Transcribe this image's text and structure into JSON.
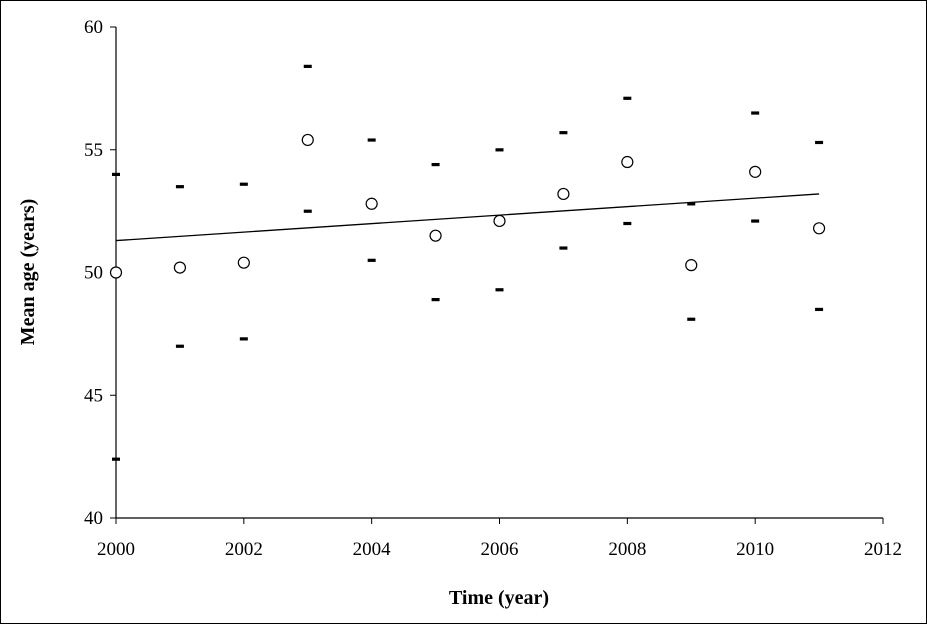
{
  "chart_data": {
    "type": "scatter",
    "title": "",
    "xlabel": "Time (year)",
    "ylabel": "Mean age (years)",
    "xlim": [
      2000,
      2012
    ],
    "ylim": [
      40,
      60
    ],
    "x_ticks": [
      2000,
      2002,
      2004,
      2006,
      2008,
      2010,
      2012
    ],
    "y_ticks": [
      40,
      45,
      50,
      55,
      60
    ],
    "grid": false,
    "legend": "none",
    "series": [
      {
        "marker": "open-circle",
        "x": [
          2000,
          2001,
          2002,
          2003,
          2004,
          2005,
          2006,
          2007,
          2008,
          2009,
          2010,
          2011
        ],
        "y": [
          50.0,
          50.2,
          50.4,
          55.4,
          52.8,
          51.5,
          52.1,
          53.2,
          54.5,
          50.3,
          54.1,
          51.8
        ]
      },
      {
        "marker": "dash",
        "x": [
          2000,
          2001,
          2002,
          2003,
          2004,
          2005,
          2006,
          2007,
          2008,
          2009,
          2010,
          2011
        ],
        "y": [
          54.0,
          53.5,
          53.6,
          58.4,
          55.4,
          54.4,
          55.0,
          55.7,
          57.1,
          52.8,
          56.5,
          55.3
        ]
      },
      {
        "marker": "dash",
        "x": [
          2000,
          2001,
          2002,
          2003,
          2004,
          2005,
          2006,
          2007,
          2008,
          2009,
          2010,
          2011
        ],
        "y": [
          42.4,
          47.0,
          47.3,
          52.5,
          50.5,
          48.9,
          49.3,
          51.0,
          52.0,
          48.1,
          52.1,
          48.5
        ]
      }
    ],
    "trendline": {
      "x": [
        2000,
        2011
      ],
      "y": [
        51.3,
        53.2
      ]
    }
  }
}
